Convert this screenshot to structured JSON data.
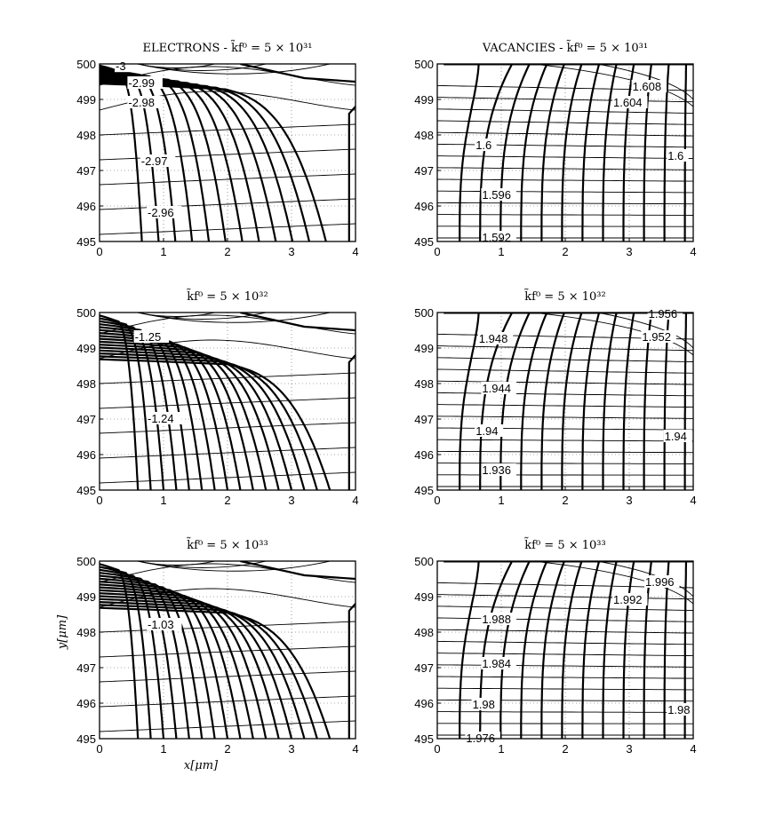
{
  "chart_data": [
    {
      "type": "contour",
      "title": "ELECTRONS - k̃f⁰ = 5 × 10³¹",
      "xlim": [
        0,
        4
      ],
      "ylim": [
        495,
        500
      ],
      "x_ticks": [
        0,
        1,
        2,
        3,
        4
      ],
      "y_ticks": [
        495,
        496,
        497,
        498,
        499,
        500
      ],
      "grid": true,
      "contour_labels": [
        {
          "text": "-3",
          "x": 0.25,
          "y": 499.92
        },
        {
          "text": "-2.99",
          "x": 0.45,
          "y": 499.45
        },
        {
          "text": "-2.98",
          "x": 0.45,
          "y": 498.9
        },
        {
          "text": "-2.97",
          "x": 0.65,
          "y": 497.25
        },
        {
          "text": "-2.96",
          "x": 0.75,
          "y": 495.8
        }
      ],
      "special": "ELECTRONS"
    },
    {
      "type": "contour",
      "title": "VACANCIES - k̃f⁰ = 5 × 10³¹",
      "xlim": [
        0,
        4
      ],
      "ylim": [
        495,
        500
      ],
      "x_ticks": [
        0,
        1,
        2,
        3,
        4
      ],
      "y_ticks": [
        495,
        496,
        497,
        498,
        499,
        500
      ],
      "grid": true,
      "contour_labels": [
        {
          "text": "1.608",
          "x": 3.05,
          "y": 499.35
        },
        {
          "text": "1.604",
          "x": 2.75,
          "y": 498.9
        },
        {
          "text": "1.6",
          "x": 0.6,
          "y": 497.7
        },
        {
          "text": "1.6",
          "x": 3.6,
          "y": 497.4
        },
        {
          "text": "1.596",
          "x": 0.7,
          "y": 496.3
        },
        {
          "text": "1.592",
          "x": 0.7,
          "y": 495.1
        }
      ],
      "special": "VACANCIES"
    },
    {
      "type": "contour",
      "title": "k̃f⁰ = 5 × 10³²",
      "xlim": [
        0,
        4
      ],
      "ylim": [
        495,
        500
      ],
      "x_ticks": [
        0,
        1,
        2,
        3,
        4
      ],
      "y_ticks": [
        495,
        496,
        497,
        498,
        499,
        500
      ],
      "grid": true,
      "contour_labels": [
        {
          "text": "-1.25",
          "x": 0.55,
          "y": 499.3
        },
        {
          "text": "-1.24",
          "x": 0.75,
          "y": 497.0
        }
      ],
      "special": "ELECTRONS"
    },
    {
      "type": "contour",
      "title": "k̃f⁰ = 5 × 10³²",
      "xlim": [
        0,
        4
      ],
      "ylim": [
        495,
        500
      ],
      "x_ticks": [
        0,
        1,
        2,
        3,
        4
      ],
      "y_ticks": [
        495,
        496,
        497,
        498,
        499,
        500
      ],
      "grid": true,
      "contour_labels": [
        {
          "text": "1.956",
          "x": 3.3,
          "y": 499.95
        },
        {
          "text": "1.952",
          "x": 3.2,
          "y": 499.3
        },
        {
          "text": "1.948",
          "x": 0.65,
          "y": 499.25
        },
        {
          "text": "1.944",
          "x": 0.7,
          "y": 497.85
        },
        {
          "text": "1.94",
          "x": 0.6,
          "y": 496.65
        },
        {
          "text": "1.94",
          "x": 3.55,
          "y": 496.5
        },
        {
          "text": "1.936",
          "x": 0.7,
          "y": 495.55
        }
      ],
      "special": "VACANCIES"
    },
    {
      "type": "contour",
      "title": "k̃f⁰ = 5 × 10³³",
      "xlim": [
        0,
        4
      ],
      "ylim": [
        495,
        500
      ],
      "x_ticks": [
        0,
        1,
        2,
        3,
        4
      ],
      "y_ticks": [
        495,
        496,
        497,
        498,
        499,
        500
      ],
      "grid": true,
      "xlabel": "x[μm]",
      "ylabel": "y[μm]",
      "contour_labels": [
        {
          "text": "-1.03",
          "x": 0.75,
          "y": 498.2
        }
      ],
      "special": "ELECTRONS"
    },
    {
      "type": "contour",
      "title": "k̃f⁰ = 5 × 10³³",
      "xlim": [
        0,
        4
      ],
      "ylim": [
        495,
        500
      ],
      "x_ticks": [
        0,
        1,
        2,
        3,
        4
      ],
      "y_ticks": [
        495,
        496,
        497,
        498,
        499,
        500
      ],
      "grid": true,
      "contour_labels": [
        {
          "text": "1.996",
          "x": 3.25,
          "y": 499.4
        },
        {
          "text": "1.992",
          "x": 2.75,
          "y": 498.9
        },
        {
          "text": "1.988",
          "x": 0.7,
          "y": 498.35
        },
        {
          "text": "1.984",
          "x": 0.7,
          "y": 497.1
        },
        {
          "text": "1.98",
          "x": 0.55,
          "y": 495.95
        },
        {
          "text": "1.98",
          "x": 3.6,
          "y": 495.8
        },
        {
          "text": "1.976",
          "x": 0.45,
          "y": 495.0
        }
      ],
      "special": "VACANCIES"
    }
  ]
}
